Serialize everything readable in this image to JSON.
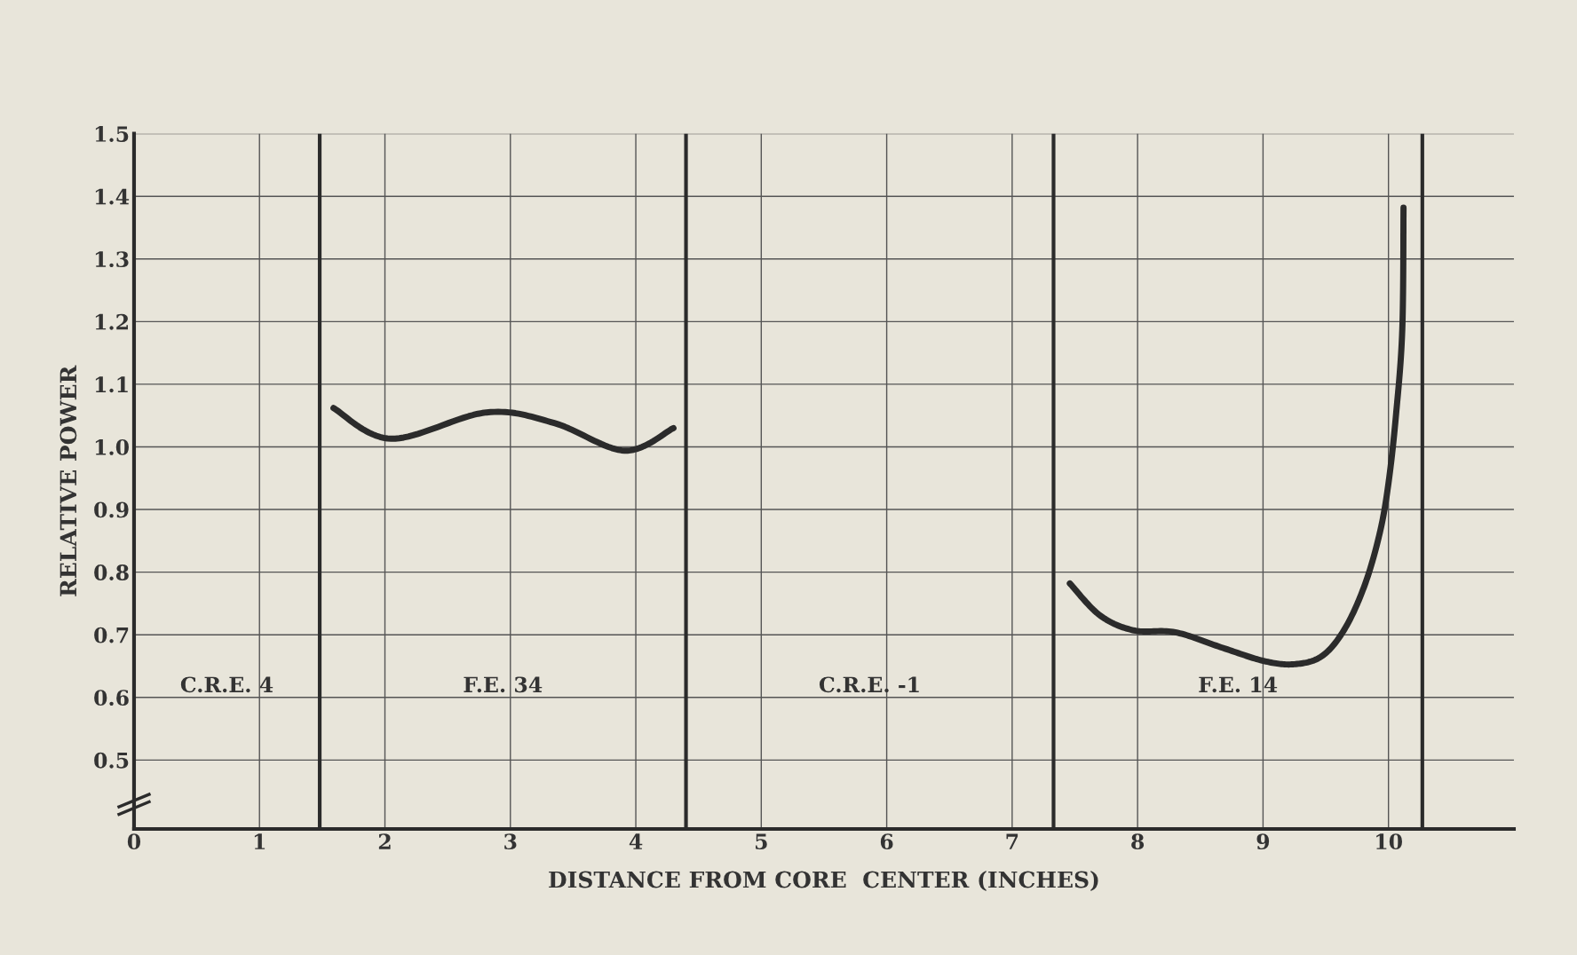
{
  "chart_data": {
    "type": "line",
    "xlabel": "DISTANCE FROM CORE  CENTER (INCHES)",
    "ylabel": "RELATIVE POWER",
    "xlim": [
      0,
      11
    ],
    "xticks": [
      0,
      1,
      2,
      3,
      4,
      5,
      6,
      7,
      8,
      9,
      10
    ],
    "ylim": [
      0.39,
      1.5
    ],
    "yticks": [
      {
        "value": 0.5,
        "label": "0.5"
      },
      {
        "value": 0.6,
        "label": "0.6"
      },
      {
        "value": 0.7,
        "label": "0.7"
      },
      {
        "value": 0.8,
        "label": "0.8"
      },
      {
        "value": 0.9,
        "label": "0.9"
      },
      {
        "value": 1.0,
        "label": "1.0"
      },
      {
        "value": 1.1,
        "label": "1.1"
      },
      {
        "value": 1.2,
        "label": "1.2"
      },
      {
        "value": 1.3,
        "label": "1.3"
      },
      {
        "value": 1.4,
        "label": "1.4"
      },
      {
        "value": 1.5,
        "label": "1.5"
      }
    ],
    "grid": true,
    "marker": "none",
    "line_style": "solid",
    "series": [
      {
        "color": "#2b2b2b",
        "x": [
          1.59,
          2.05,
          2.81,
          3.35,
          3.91,
          4.3
        ],
        "values": [
          1.062,
          1.013,
          1.055,
          1.038,
          0.994,
          1.03
        ]
      },
      {
        "color": "#2b2b2b",
        "x": [
          7.46,
          7.7,
          7.97,
          8.3,
          8.68,
          9.01,
          9.25,
          9.47,
          9.65,
          9.81,
          9.93,
          10.0,
          10.06,
          10.11,
          10.12
        ],
        "values": [
          0.782,
          0.731,
          0.707,
          0.704,
          0.679,
          0.658,
          0.653,
          0.666,
          0.709,
          0.779,
          0.862,
          0.942,
          1.051,
          1.187,
          1.382
        ]
      }
    ],
    "ref_lines": [
      {
        "axis": "x",
        "value": 1.48,
        "color": "#2b2b2b"
      },
      {
        "axis": "x",
        "value": 4.4,
        "color": "#2b2b2b"
      },
      {
        "axis": "x",
        "value": 7.33,
        "color": "#2b2b2b"
      },
      {
        "axis": "x",
        "value": 10.27,
        "color": "#2b2b2b"
      }
    ],
    "annotations": [
      "C.R.E. 4",
      "F.E. 34",
      "C.R.E. -1",
      "F.E. 14"
    ]
  }
}
